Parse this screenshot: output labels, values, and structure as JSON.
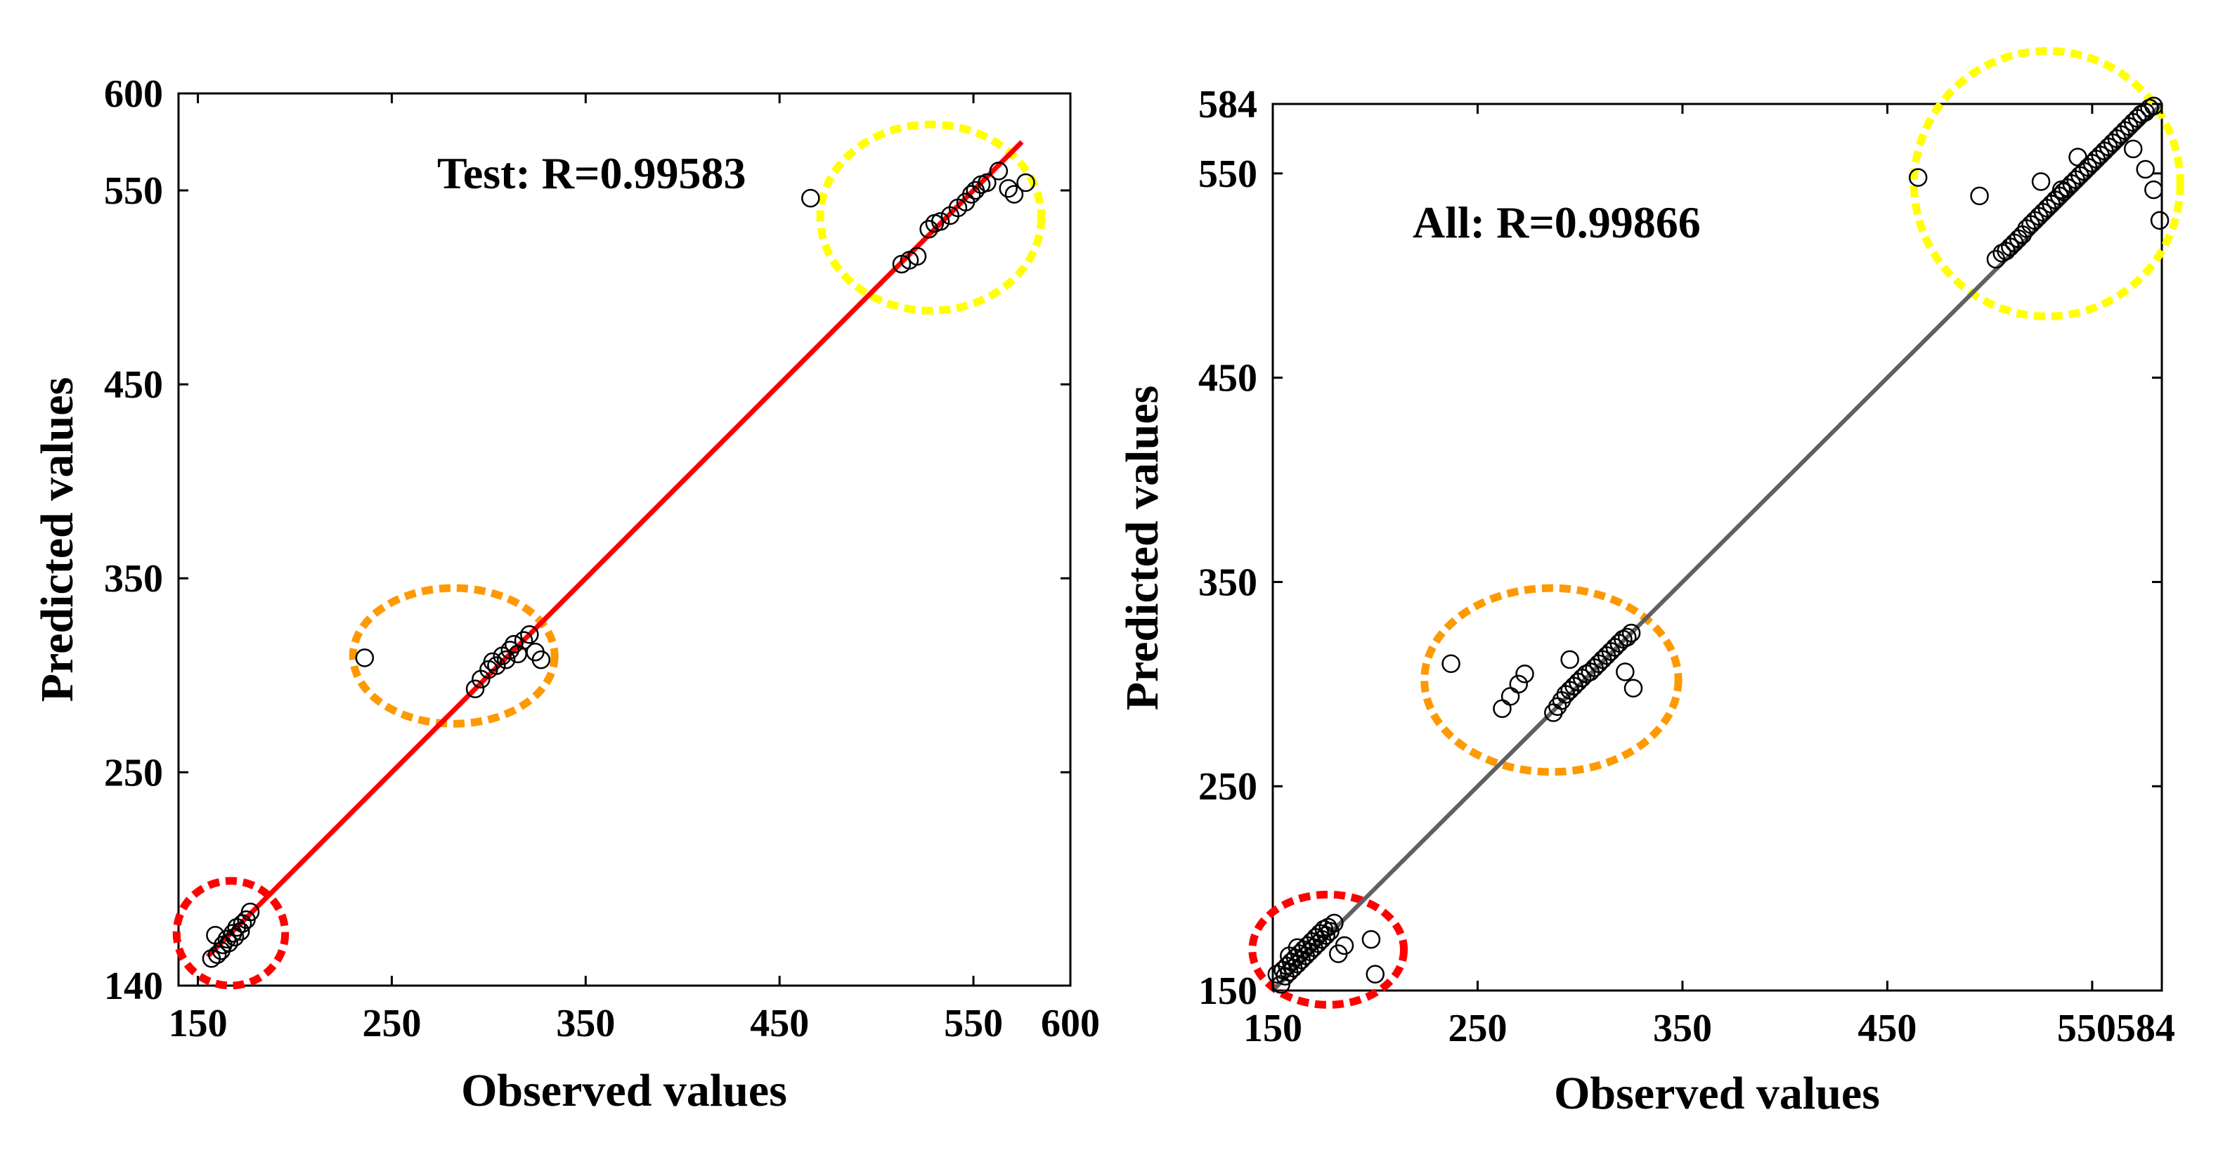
{
  "chart_data": [
    {
      "type": "scatter",
      "title": "",
      "annotation": "Test: R=0.99583",
      "xlabel": "Observed values",
      "ylabel": "Predicted values",
      "xlim": [
        140,
        600
      ],
      "ylim": [
        140,
        600
      ],
      "x_ticks": [
        150,
        250,
        350,
        450,
        550,
        600
      ],
      "y_ticks": [
        140,
        250,
        350,
        450,
        550,
        600
      ],
      "fit_line": {
        "from": [
          155,
          155
        ],
        "to": [
          575,
          575
        ],
        "color": "#ff0000"
      },
      "series": [
        {
          "name": "Test samples",
          "marker": "open-circle",
          "x": [
            157,
            159,
            160,
            162,
            163,
            165,
            166,
            168,
            169,
            170,
            172,
            173,
            175,
            177,
            236,
            293,
            296,
            300,
            302,
            304,
            307,
            309,
            311,
            313,
            315,
            318,
            321,
            324,
            327,
            466,
            513,
            517,
            521,
            527,
            530,
            533,
            538,
            542,
            546,
            549,
            551,
            554,
            557,
            563,
            568,
            571,
            577
          ],
          "y": [
            154,
            166,
            156,
            158,
            161,
            164,
            162,
            167,
            165,
            170,
            168,
            172,
            174,
            178,
            309,
            293,
            298,
            303,
            307,
            305,
            310,
            308,
            313,
            316,
            311,
            318,
            321,
            312,
            308,
            546,
            512,
            514,
            516,
            530,
            533,
            534,
            537,
            541,
            544,
            548,
            550,
            553,
            554,
            560,
            551,
            548,
            554
          ]
        }
      ],
      "highlight_ellipses": [
        {
          "color": "#ff0000",
          "center": [
            167,
            167
          ],
          "radius": [
            28,
            27
          ]
        },
        {
          "color": "#ff9900",
          "center": [
            282,
            310
          ],
          "radius": [
            52,
            35
          ]
        },
        {
          "color": "#ffff00",
          "center": [
            528,
            536
          ],
          "radius": [
            57,
            48
          ]
        }
      ]
    },
    {
      "type": "scatter",
      "title": "",
      "annotation": "All: R=0.99866",
      "xlabel": "Observed values",
      "ylabel": "Predicted values",
      "xlim": [
        150,
        584
      ],
      "ylim": [
        150,
        584
      ],
      "x_ticks": [
        150,
        250,
        350,
        450,
        550,
        584
      ],
      "x_tick_labels": [
        "150",
        "250",
        "350",
        "450",
        "550584"
      ],
      "y_ticks": [
        150,
        250,
        350,
        450,
        550,
        584
      ],
      "fit_line": {
        "from": [
          150,
          150
        ],
        "to": [
          584,
          584
        ],
        "color": "#606060"
      },
      "series": [
        {
          "name": "All samples",
          "marker": "open-circle",
          "x": [
            152,
            154,
            155,
            156,
            157,
            158,
            159,
            160,
            161,
            162,
            163,
            164,
            165,
            166,
            167,
            168,
            169,
            170,
            171,
            172,
            173,
            174,
            175,
            176,
            177,
            178,
            180,
            182,
            185,
            198,
            200,
            162,
            158,
            237,
            262,
            266,
            270,
            273,
            287,
            289,
            291,
            293,
            295,
            297,
            299,
            301,
            303,
            305,
            307,
            309,
            311,
            313,
            315,
            317,
            319,
            321,
            323,
            325,
            295,
            322,
            326,
            465,
            495,
            503,
            506,
            508,
            510,
            512,
            514,
            516,
            518,
            520,
            522,
            524,
            526,
            528,
            530,
            532,
            534,
            536,
            538,
            540,
            542,
            544,
            546,
            548,
            550,
            552,
            554,
            556,
            558,
            560,
            562,
            564,
            566,
            568,
            570,
            572,
            574,
            576,
            578,
            580,
            525,
            535,
            543,
            570,
            576,
            580,
            583
          ],
          "y": [
            158,
            153,
            160,
            157,
            162,
            159,
            164,
            161,
            166,
            163,
            168,
            165,
            170,
            167,
            172,
            169,
            174,
            171,
            176,
            173,
            178,
            175,
            180,
            177,
            181,
            179,
            183,
            168,
            172,
            175,
            158,
            171,
            167,
            310,
            288,
            294,
            300,
            305,
            286,
            289,
            292,
            295,
            297,
            299,
            301,
            303,
            305,
            306,
            308,
            310,
            312,
            314,
            316,
            318,
            320,
            322,
            323,
            325,
            312,
            306,
            298,
            548,
            539,
            508,
            511,
            512,
            514,
            516,
            518,
            520,
            523,
            525,
            527,
            529,
            531,
            533,
            535,
            537,
            539,
            541,
            543,
            545,
            547,
            549,
            551,
            553,
            555,
            557,
            559,
            561,
            563,
            565,
            567,
            569,
            571,
            573,
            575,
            577,
            579,
            580,
            582,
            583,
            546,
            542,
            558,
            562,
            552,
            542,
            527
          ]
        }
      ],
      "highlight_ellipses": [
        {
          "color": "#ff0000",
          "center": [
            177,
            170
          ],
          "radius": [
            37,
            27
          ]
        },
        {
          "color": "#ff9900",
          "center": [
            286,
            302
          ],
          "radius": [
            62,
            45
          ]
        },
        {
          "color": "#ffff00",
          "center": [
            528,
            545
          ],
          "radius": [
            65,
            65
          ]
        }
      ]
    }
  ]
}
